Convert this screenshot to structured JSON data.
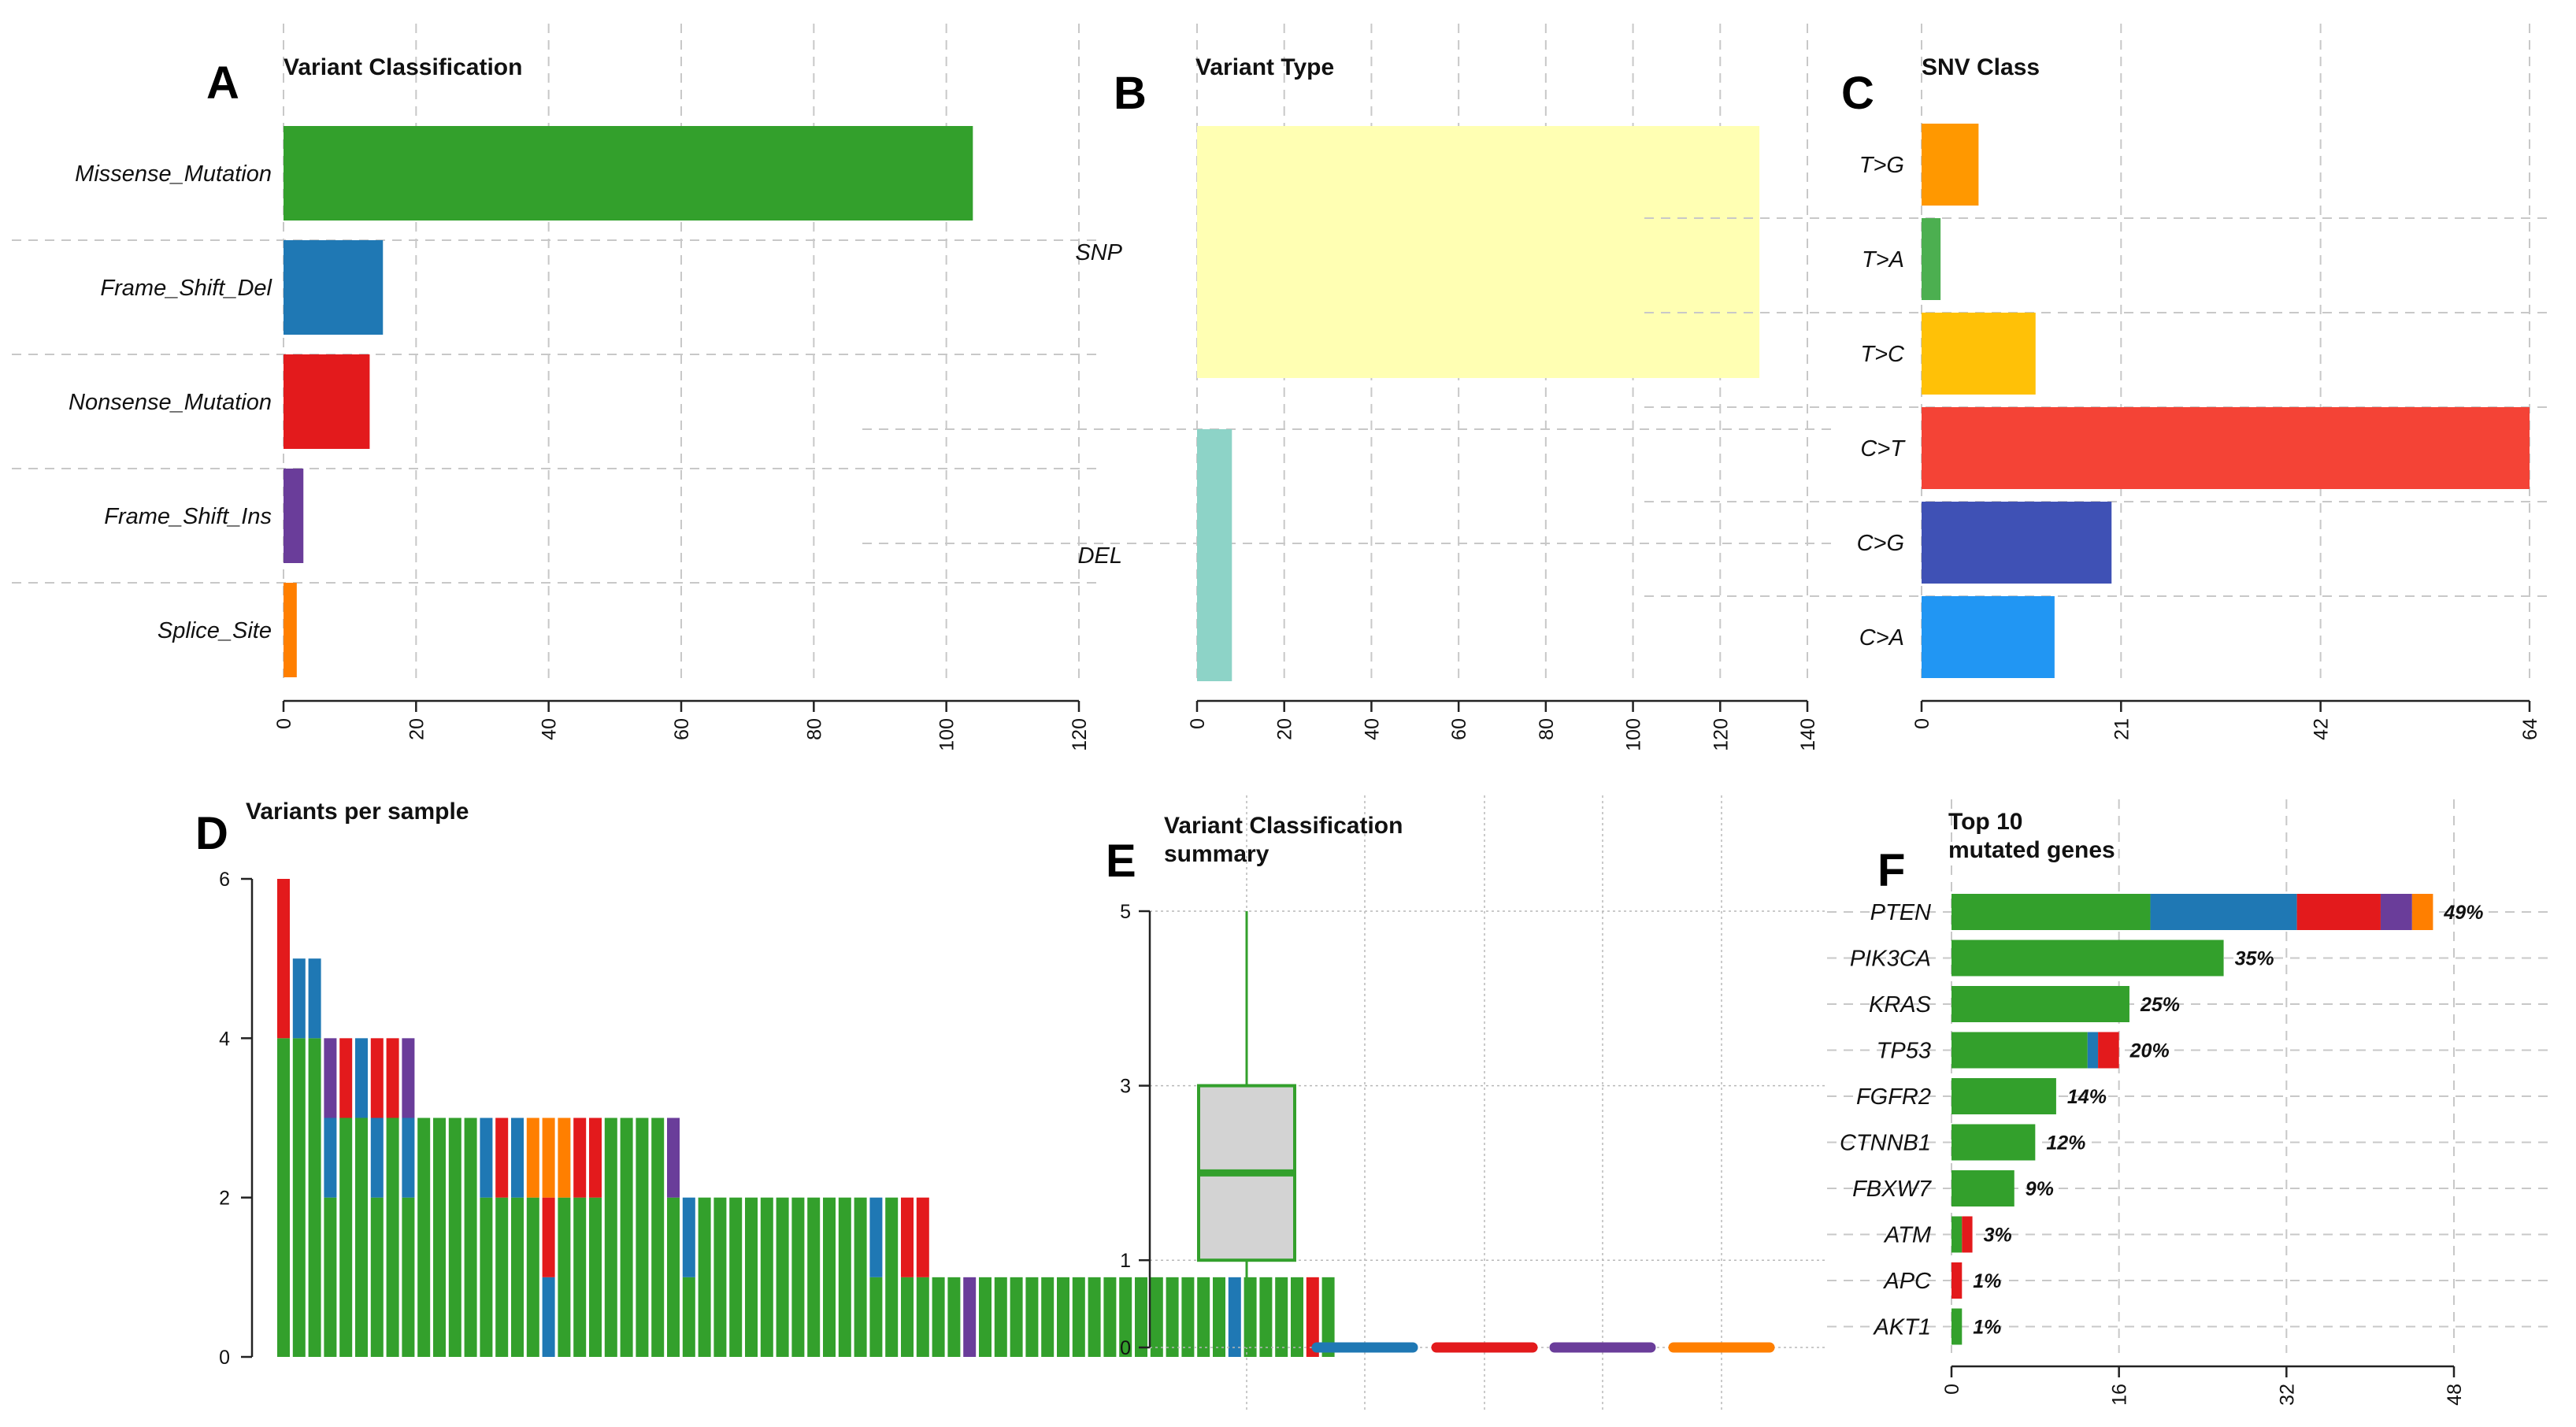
{
  "colors": {
    "Missense_Mutation": "#33a02c",
    "Frame_Shift_Del": "#1f78b4",
    "Nonsense_Mutation": "#e31a1c",
    "Frame_Shift_Ins": "#6a3d9a",
    "Splice_Site": "#ff7f00",
    "SNP": "#ffffb3",
    "DEL": "#8dd3c7"
  },
  "chart_data": [
    {
      "id": "A",
      "letter": "A",
      "type": "bar",
      "orientation": "horizontal",
      "title": "Variant Classification",
      "categories": [
        "Missense_Mutation",
        "Frame_Shift_Del",
        "Nonsense_Mutation",
        "Frame_Shift_Ins",
        "Splice_Site"
      ],
      "values": [
        104,
        15,
        13,
        3,
        2
      ],
      "colors": [
        "#33a02c",
        "#1f78b4",
        "#e31a1c",
        "#6a3d9a",
        "#ff7f00"
      ],
      "xlim": [
        0,
        120
      ],
      "ticks": [
        0,
        20,
        40,
        60,
        80,
        100,
        120
      ]
    },
    {
      "id": "B",
      "letter": "B",
      "type": "bar",
      "orientation": "horizontal",
      "title": "Variant Type",
      "categories": [
        "SNP",
        "DEL"
      ],
      "values": [
        129,
        8
      ],
      "colors": [
        "#ffffb3",
        "#8dd3c7"
      ],
      "xlim": [
        0,
        140
      ],
      "ticks": [
        0,
        20,
        40,
        60,
        80,
        100,
        120,
        140
      ]
    },
    {
      "id": "C",
      "letter": "C",
      "type": "bar",
      "orientation": "horizontal",
      "title": "SNV Class",
      "categories": [
        "T>G",
        "T>A",
        "T>C",
        "C>T",
        "C>G",
        "C>A"
      ],
      "values": [
        6,
        2,
        12,
        64,
        20,
        14
      ],
      "colors": [
        "#ff9800",
        "#4caf50",
        "#ffc107",
        "#f44336",
        "#3f51b5",
        "#2196f3"
      ],
      "xlim": [
        0,
        64
      ],
      "ticks": [
        0,
        21,
        42,
        64
      ]
    },
    {
      "id": "D",
      "letter": "D",
      "type": "bar",
      "stacked": true,
      "title": "Variants per sample",
      "ylim": [
        0,
        6
      ],
      "ticks": [
        0,
        2,
        4,
        6
      ],
      "stack_order": [
        "Missense_Mutation",
        "Frame_Shift_Del",
        "Nonsense_Mutation",
        "Frame_Shift_Ins",
        "Splice_Site"
      ],
      "samples": [
        [
          4,
          0,
          2,
          0,
          0
        ],
        [
          4,
          1,
          0,
          0,
          0
        ],
        [
          4,
          1,
          0,
          0,
          0
        ],
        [
          2,
          1,
          0,
          1,
          0
        ],
        [
          3,
          0,
          1,
          0,
          0
        ],
        [
          3,
          1,
          0,
          0,
          0
        ],
        [
          2,
          1,
          1,
          0,
          0
        ],
        [
          3,
          0,
          1,
          0,
          0
        ],
        [
          2,
          1,
          0,
          1,
          0
        ],
        [
          3,
          0,
          0,
          0,
          0
        ],
        [
          3,
          0,
          0,
          0,
          0
        ],
        [
          3,
          0,
          0,
          0,
          0
        ],
        [
          3,
          0,
          0,
          0,
          0
        ],
        [
          2,
          1,
          0,
          0,
          0
        ],
        [
          2,
          0,
          1,
          0,
          0
        ],
        [
          2,
          1,
          0,
          0,
          0
        ],
        [
          2,
          0,
          0,
          0,
          1
        ],
        [
          0,
          1,
          1,
          0,
          1
        ],
        [
          2,
          0,
          0,
          0,
          1
        ],
        [
          2,
          0,
          1,
          0,
          0
        ],
        [
          2,
          0,
          1,
          0,
          0
        ],
        [
          3,
          0,
          0,
          0,
          0
        ],
        [
          3,
          0,
          0,
          0,
          0
        ],
        [
          3,
          0,
          0,
          0,
          0
        ],
        [
          3,
          0,
          0,
          0,
          0
        ],
        [
          2,
          0,
          0,
          1,
          0
        ],
        [
          1,
          1,
          0,
          0,
          0
        ],
        [
          2,
          0,
          0,
          0,
          0
        ],
        [
          2,
          0,
          0,
          0,
          0
        ],
        [
          2,
          0,
          0,
          0,
          0
        ],
        [
          2,
          0,
          0,
          0,
          0
        ],
        [
          2,
          0,
          0,
          0,
          0
        ],
        [
          2,
          0,
          0,
          0,
          0
        ],
        [
          2,
          0,
          0,
          0,
          0
        ],
        [
          2,
          0,
          0,
          0,
          0
        ],
        [
          2,
          0,
          0,
          0,
          0
        ],
        [
          2,
          0,
          0,
          0,
          0
        ],
        [
          2,
          0,
          0,
          0,
          0
        ],
        [
          1,
          1,
          0,
          0,
          0
        ],
        [
          2,
          0,
          0,
          0,
          0
        ],
        [
          1,
          0,
          1,
          0,
          0
        ],
        [
          1,
          0,
          1,
          0,
          0
        ],
        [
          1,
          0,
          0,
          0,
          0
        ],
        [
          1,
          0,
          0,
          0,
          0
        ],
        [
          0,
          0,
          0,
          1,
          0
        ],
        [
          1,
          0,
          0,
          0,
          0
        ],
        [
          1,
          0,
          0,
          0,
          0
        ],
        [
          1,
          0,
          0,
          0,
          0
        ],
        [
          1,
          0,
          0,
          0,
          0
        ],
        [
          1,
          0,
          0,
          0,
          0
        ],
        [
          1,
          0,
          0,
          0,
          0
        ],
        [
          1,
          0,
          0,
          0,
          0
        ],
        [
          1,
          0,
          0,
          0,
          0
        ],
        [
          1,
          0,
          0,
          0,
          0
        ],
        [
          1,
          0,
          0,
          0,
          0
        ],
        [
          1,
          0,
          0,
          0,
          0
        ],
        [
          1,
          0,
          0,
          0,
          0
        ],
        [
          1,
          0,
          0,
          0,
          0
        ],
        [
          1,
          0,
          0,
          0,
          0
        ],
        [
          1,
          0,
          0,
          0,
          0
        ],
        [
          1,
          0,
          0,
          0,
          0
        ],
        [
          0,
          1,
          0,
          0,
          0
        ],
        [
          1,
          0,
          0,
          0,
          0
        ],
        [
          1,
          0,
          0,
          0,
          0
        ],
        [
          1,
          0,
          0,
          0,
          0
        ],
        [
          1,
          0,
          0,
          0,
          0
        ],
        [
          0,
          0,
          1,
          0,
          0
        ],
        [
          1,
          0,
          0,
          0,
          0
        ]
      ]
    },
    {
      "id": "E",
      "letter": "E",
      "type": "boxplot",
      "title": "Variant Classification\nsummary",
      "ylim": [
        0,
        5
      ],
      "ticks": [
        0,
        1,
        3,
        5
      ],
      "boxes": [
        {
          "name": "Missense_Mutation",
          "color": "#33a02c",
          "min": 0,
          "q1": 1,
          "median": 2,
          "q3": 3,
          "max": 5
        },
        {
          "name": "Frame_Shift_Del",
          "color": "#1f78b4",
          "min": 0,
          "q1": 0,
          "median": 0,
          "q3": 0,
          "max": 0
        },
        {
          "name": "Nonsense_Mutation",
          "color": "#e31a1c",
          "min": 0,
          "q1": 0,
          "median": 0,
          "q3": 0,
          "max": 0
        },
        {
          "name": "Frame_Shift_Ins",
          "color": "#6a3d9a",
          "min": 0,
          "q1": 0,
          "median": 0,
          "q3": 0,
          "max": 0
        },
        {
          "name": "Splice_Site",
          "color": "#ff7f00",
          "min": 0,
          "q1": 0,
          "median": 0,
          "q3": 0,
          "max": 0
        }
      ]
    },
    {
      "id": "F",
      "letter": "F",
      "type": "bar",
      "orientation": "horizontal",
      "stacked": true,
      "title": "Top 10\nmutated genes",
      "xlim": [
        0,
        48
      ],
      "ticks": [
        0,
        16,
        32,
        48
      ],
      "stack_order": [
        "Missense_Mutation",
        "Frame_Shift_Del",
        "Nonsense_Mutation",
        "Frame_Shift_Ins",
        "Splice_Site"
      ],
      "genes": [
        {
          "name": "PTEN",
          "pct": "49%",
          "counts": [
            19,
            14,
            8,
            3,
            2
          ]
        },
        {
          "name": "PIK3CA",
          "pct": "35%",
          "counts": [
            26,
            0,
            0,
            0,
            0
          ]
        },
        {
          "name": "KRAS",
          "pct": "25%",
          "counts": [
            17,
            0,
            0,
            0,
            0
          ]
        },
        {
          "name": "TP53",
          "pct": "20%",
          "counts": [
            13,
            1,
            2,
            0,
            0
          ]
        },
        {
          "name": "FGFR2",
          "pct": "14%",
          "counts": [
            10,
            0,
            0,
            0,
            0
          ]
        },
        {
          "name": "CTNNB1",
          "pct": "12%",
          "counts": [
            8,
            0,
            0,
            0,
            0
          ]
        },
        {
          "name": "FBXW7",
          "pct": "9%",
          "counts": [
            6,
            0,
            0,
            0,
            0
          ]
        },
        {
          "name": "ATM",
          "pct": "3%",
          "counts": [
            1,
            0,
            1,
            0,
            0
          ]
        },
        {
          "name": "APC",
          "pct": "1%",
          "counts": [
            0,
            0,
            1,
            0,
            0
          ]
        },
        {
          "name": "AKT1",
          "pct": "1%",
          "counts": [
            1,
            0,
            0,
            0,
            0
          ]
        }
      ]
    }
  ]
}
